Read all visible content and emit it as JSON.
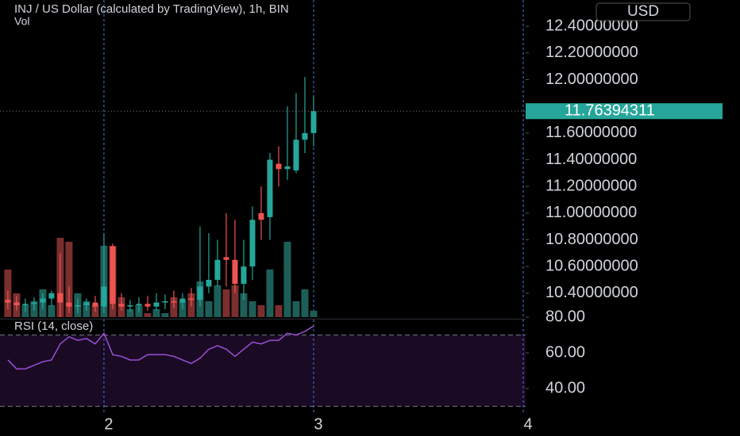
{
  "chart_data": {
    "type": "candlestick",
    "title": "INJ / US Dollar (calculated by TradingView), 1h, BIN",
    "currency": "USD",
    "volume_label": "Vol",
    "x": [
      -11,
      -10,
      -9,
      -8,
      -7,
      -6,
      -5,
      -4,
      -3,
      -2,
      -1,
      0,
      1,
      2,
      3,
      4,
      5,
      6,
      7,
      8,
      9,
      10,
      11,
      12,
      13,
      14,
      15,
      16,
      17,
      18,
      19,
      20,
      21,
      22,
      23,
      24
    ],
    "open": [
      10.35,
      10.33,
      10.31,
      10.32,
      10.33,
      10.36,
      10.4,
      10.33,
      10.3,
      10.31,
      10.33,
      10.3,
      10.75,
      10.32,
      10.3,
      10.31,
      10.32,
      10.3,
      10.33,
      10.34,
      10.33,
      10.36,
      10.35,
      10.45,
      10.5,
      10.67,
      10.65,
      10.47,
      10.6,
      11.0,
      10.97,
      11.37,
      11.33,
      11.32,
      11.55,
      11.6
    ],
    "high": [
      10.42,
      10.38,
      10.36,
      10.37,
      10.4,
      10.42,
      10.7,
      10.45,
      10.36,
      10.36,
      10.38,
      10.85,
      10.77,
      10.4,
      10.35,
      10.37,
      10.38,
      10.4,
      10.39,
      10.42,
      10.4,
      10.44,
      10.9,
      10.85,
      10.8,
      11.0,
      10.95,
      10.8,
      11.05,
      11.2,
      11.45,
      11.5,
      11.8,
      11.9,
      12.02,
      11.88
    ],
    "low": [
      10.28,
      10.27,
      10.26,
      10.27,
      10.28,
      10.3,
      10.22,
      10.25,
      10.25,
      10.27,
      10.26,
      10.25,
      10.28,
      10.27,
      10.26,
      10.26,
      10.27,
      10.27,
      10.28,
      10.29,
      10.28,
      10.3,
      10.3,
      10.4,
      10.45,
      10.45,
      10.4,
      10.35,
      10.5,
      10.8,
      10.8,
      11.2,
      11.25,
      11.3,
      11.45,
      11.5
    ],
    "close": [
      10.33,
      10.31,
      10.32,
      10.33,
      10.36,
      10.4,
      10.33,
      10.3,
      10.31,
      10.33,
      10.3,
      10.45,
      10.32,
      10.3,
      10.31,
      10.32,
      10.3,
      10.33,
      10.34,
      10.33,
      10.36,
      10.35,
      10.45,
      10.5,
      10.65,
      10.65,
      10.47,
      10.6,
      10.95,
      10.95,
      11.4,
      11.33,
      11.35,
      11.55,
      11.6,
      11.76394311
    ],
    "volume": [
      60,
      30,
      15,
      20,
      35,
      15,
      100,
      95,
      30,
      20,
      15,
      90,
      90,
      25,
      10,
      15,
      5,
      10,
      5,
      25,
      20,
      30,
      45,
      20,
      40,
      35,
      40,
      30,
      20,
      15,
      60,
      15,
      95,
      20,
      35,
      8
    ],
    "xlim": [
      -11.9,
      48.27
    ],
    "xticks": [
      {
        "value": 0,
        "label": "2"
      },
      {
        "value": 24,
        "label": "3"
      },
      {
        "value": 48,
        "label": "4"
      }
    ],
    "ylim": [
      10.209,
      12.597
    ],
    "yticks": [
      {
        "value": 10.4,
        "label": "10.40000000"
      },
      {
        "value": 10.6,
        "label": "10.60000000"
      },
      {
        "value": 10.8,
        "label": "10.80000000"
      },
      {
        "value": 11.0,
        "label": "11.00000000"
      },
      {
        "value": 11.2,
        "label": "11.20000000"
      },
      {
        "value": 11.4,
        "label": "11.40000000"
      },
      {
        "value": 11.6,
        "label": "11.60000000"
      },
      {
        "value": 12.0,
        "label": "12.00000000"
      },
      {
        "value": 12.2,
        "label": "12.20000000"
      },
      {
        "value": 12.4,
        "label": "12.40000000"
      }
    ],
    "vlim": [
      0,
      400
    ],
    "up_color": "#26a69a",
    "down_color": "#ef5350",
    "up_volume_color": "#1d5f58",
    "down_volume_color": "#7b2e2e",
    "rsi": {
      "label": "RSI (14, close)",
      "color": "#9c4fd6",
      "values": [
        56,
        51,
        51,
        53,
        55,
        56,
        65,
        69,
        67,
        68,
        65,
        71,
        59,
        58,
        56,
        56,
        59,
        59,
        59,
        58,
        56,
        54,
        57,
        62,
        64,
        62,
        58,
        62,
        66,
        65,
        67,
        67,
        71,
        70,
        72,
        75
      ],
      "ylim": [
        26.7,
        78.7
      ],
      "yticks": [
        {
          "value": 40,
          "label": "40.00"
        },
        {
          "value": 60,
          "label": "60.00"
        },
        {
          "value": 80,
          "label": "80.00"
        }
      ],
      "bands": [
        30,
        70
      ]
    }
  }
}
